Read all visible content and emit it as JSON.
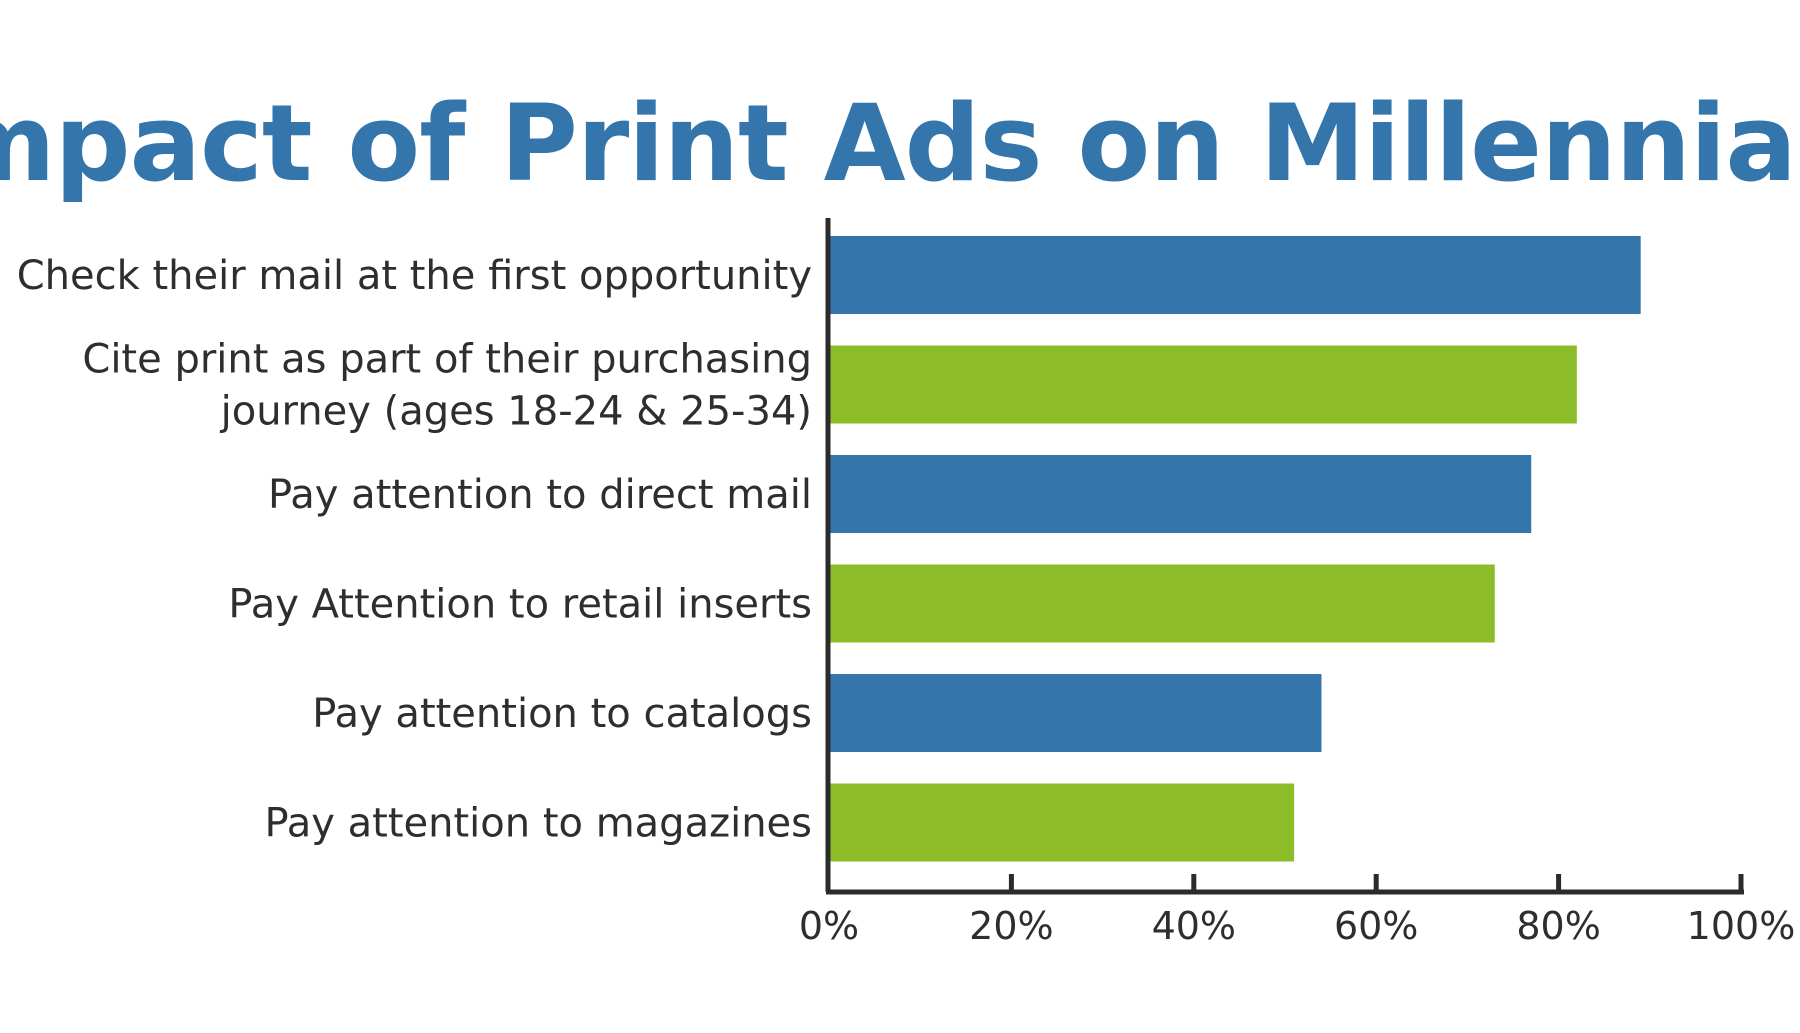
{
  "chart_data": {
    "type": "bar",
    "orientation": "horizontal",
    "title": "Impact of Print Ads on Millennials",
    "categories": [
      [
        "Check their mail at the first opportunity"
      ],
      [
        "Cite print as part of their purchasing",
        "journey (ages 18-24 & 25-34)"
      ],
      [
        "Pay attention to direct mail"
      ],
      [
        "Pay Attention to retail inserts"
      ],
      [
        "Pay attention to catalogs"
      ],
      [
        "Pay attention to magazines"
      ]
    ],
    "values": [
      89,
      82,
      77,
      73,
      54,
      51
    ],
    "bar_colors": [
      "#3476ab",
      "#8cbd29",
      "#3476ab",
      "#8cbd29",
      "#3476ab",
      "#8cbd29"
    ],
    "xlim": [
      0,
      100
    ],
    "x_ticks": [
      0,
      20,
      40,
      60,
      80,
      100
    ],
    "x_tick_labels": [
      "0%",
      "20%",
      "40%",
      "60%",
      "80%",
      "100%"
    ],
    "grid": false,
    "legend": "none",
    "colors": {
      "title": "#3476ab",
      "axis": "#2b2b2b",
      "text": "#2e2e2e"
    }
  }
}
